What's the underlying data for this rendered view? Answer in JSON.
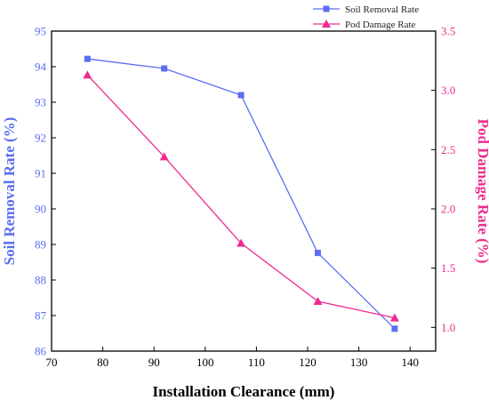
{
  "chart_data": {
    "type": "line",
    "xlabel": "Installation Clearance (mm)",
    "x_range": [
      70,
      145
    ],
    "x_ticks": [
      70,
      80,
      90,
      100,
      110,
      120,
      130,
      140
    ],
    "left_axis": {
      "label": "Soil Removal Rate (%)",
      "range": [
        86,
        95
      ],
      "ticks": [
        86,
        87,
        88,
        89,
        90,
        91,
        92,
        93,
        94,
        95
      ],
      "color": "#5b6ef2"
    },
    "right_axis": {
      "label": "Pod Damage Rate (%)",
      "range": [
        0.8,
        3.5
      ],
      "ticks": [
        "1.0",
        "1.5",
        "2.0",
        "2.5",
        "3.0",
        "3.5"
      ],
      "color": "#ee2b8f"
    },
    "legend_position": "top-right",
    "grid": false,
    "series": [
      {
        "name": "Soil Removal Rate",
        "axis": "left",
        "marker": "square",
        "color": "#5b6ef2",
        "x": [
          77,
          92,
          107,
          122,
          137
        ],
        "y": [
          94.22,
          93.95,
          93.2,
          88.76,
          86.63
        ]
      },
      {
        "name": "Pod Damage Rate",
        "axis": "right",
        "marker": "triangle",
        "color": "#ee2b8f",
        "x": [
          77,
          92,
          107,
          122,
          137
        ],
        "y": [
          3.13,
          2.44,
          1.71,
          1.22,
          1.08
        ]
      }
    ]
  }
}
